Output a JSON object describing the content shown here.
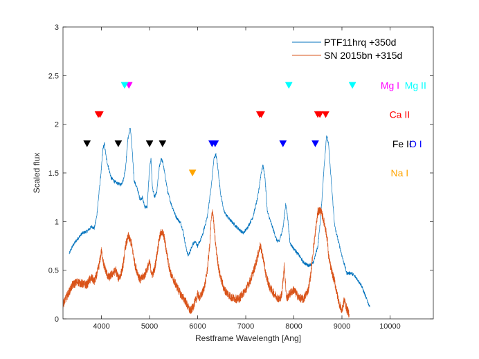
{
  "chart_data": {
    "type": "line",
    "title": "",
    "xlabel": "Restframe Wavelength [Ang]",
    "ylabel": "Scaled flux",
    "xlim": [
      3200,
      10900
    ],
    "ylim": [
      0,
      3
    ],
    "xticks": [
      4000,
      5000,
      6000,
      7000,
      8000,
      9000,
      10000
    ],
    "yticks": [
      0,
      0.5,
      1,
      1.5,
      2,
      2.5,
      3
    ],
    "ytick_labels": [
      "0",
      "0.5",
      "1",
      "1.5",
      "2",
      "2.5",
      "3"
    ],
    "series": [
      {
        "name": "PTF11hrq +350d",
        "color": "#0072BD",
        "x": [
          3330,
          3400,
          3500,
          3600,
          3700,
          3800,
          3850,
          3900,
          3950,
          4000,
          4030,
          4060,
          4100,
          4150,
          4200,
          4300,
          4400,
          4450,
          4500,
          4550,
          4600,
          4640,
          4680,
          4750,
          4800,
          4850,
          4900,
          4950,
          5000,
          5030,
          5060,
          5100,
          5150,
          5200,
          5240,
          5280,
          5330,
          5380,
          5450,
          5550,
          5650,
          5700,
          5750,
          5800,
          5850,
          5900,
          5950,
          6000,
          6050,
          6100,
          6200,
          6280,
          6340,
          6380,
          6420,
          6480,
          6550,
          6650,
          6800,
          6950,
          7050,
          7150,
          7250,
          7320,
          7360,
          7400,
          7450,
          7550,
          7650,
          7700,
          7780,
          7830,
          7870,
          7920,
          8000,
          8100,
          8200,
          8300,
          8400,
          8500,
          8560,
          8620,
          8680,
          8720,
          8780,
          8850,
          9000,
          9100,
          9200,
          9300,
          9400,
          9500,
          9580
        ],
        "y": [
          0.67,
          0.75,
          0.82,
          0.88,
          0.9,
          0.95,
          0.93,
          1.05,
          1.3,
          1.55,
          1.75,
          1.8,
          1.65,
          1.55,
          1.45,
          1.4,
          1.38,
          1.42,
          1.55,
          1.85,
          1.97,
          1.72,
          1.42,
          1.33,
          1.23,
          1.25,
          1.15,
          1.15,
          1.55,
          1.65,
          1.35,
          1.25,
          1.3,
          1.55,
          1.65,
          1.6,
          1.45,
          1.3,
          1.18,
          1.05,
          0.98,
          0.9,
          0.75,
          0.65,
          0.7,
          0.77,
          0.8,
          0.75,
          0.8,
          0.86,
          1.05,
          1.35,
          1.65,
          1.69,
          1.55,
          1.28,
          1.1,
          1.03,
          0.95,
          0.88,
          0.95,
          1.05,
          1.25,
          1.5,
          1.58,
          1.45,
          1.1,
          0.95,
          0.8,
          0.8,
          0.95,
          1.18,
          1.05,
          0.78,
          0.72,
          0.66,
          0.58,
          0.55,
          0.57,
          0.75,
          1.05,
          1.5,
          1.89,
          1.8,
          1.4,
          0.95,
          0.65,
          0.47,
          0.47,
          0.42,
          0.35,
          0.22,
          0.12
        ]
      },
      {
        "name": "SN 2015bn +315d",
        "color": "#D95319",
        "x": [
          3200,
          3300,
          3400,
          3500,
          3600,
          3700,
          3750,
          3800,
          3850,
          3900,
          3950,
          4000,
          4050,
          4100,
          4150,
          4200,
          4300,
          4350,
          4400,
          4450,
          4500,
          4560,
          4620,
          4700,
          4800,
          4900,
          5000,
          5050,
          5100,
          5150,
          5200,
          5250,
          5300,
          5350,
          5400,
          5450,
          5500,
          5550,
          5650,
          5750,
          5800,
          5850,
          5900,
          5950,
          6000,
          6050,
          6100,
          6150,
          6200,
          6250,
          6280,
          6310,
          6340,
          6370,
          6400,
          6450,
          6550,
          6700,
          6850,
          7000,
          7100,
          7200,
          7300,
          7330,
          7370,
          7420,
          7500,
          7600,
          7700,
          7750,
          7800,
          7850,
          7900,
          8000,
          8100,
          8200,
          8300,
          8350,
          8400,
          8450,
          8500,
          8550,
          8600,
          8650,
          8700,
          8720,
          8780,
          8850,
          8900,
          8950,
          9000,
          9050,
          9100,
          9150
        ],
        "y": [
          0.15,
          0.25,
          0.35,
          0.38,
          0.36,
          0.35,
          0.4,
          0.42,
          0.38,
          0.45,
          0.55,
          0.7,
          0.55,
          0.48,
          0.42,
          0.45,
          0.5,
          0.42,
          0.45,
          0.55,
          0.75,
          0.85,
          0.78,
          0.55,
          0.4,
          0.45,
          0.58,
          0.45,
          0.5,
          0.65,
          0.82,
          0.9,
          0.85,
          0.7,
          0.55,
          0.45,
          0.4,
          0.35,
          0.25,
          0.18,
          0.12,
          0.08,
          0.12,
          0.18,
          0.25,
          0.22,
          0.27,
          0.35,
          0.5,
          0.75,
          1.0,
          1.12,
          0.95,
          0.78,
          0.65,
          0.48,
          0.3,
          0.22,
          0.2,
          0.3,
          0.4,
          0.55,
          0.75,
          0.7,
          0.6,
          0.45,
          0.32,
          0.25,
          0.2,
          0.25,
          0.55,
          0.2,
          0.25,
          0.3,
          0.22,
          0.2,
          0.3,
          0.45,
          0.7,
          0.9,
          1.1,
          1.12,
          1.05,
          0.95,
          0.8,
          0.65,
          0.5,
          0.38,
          0.25,
          0.15,
          0.08,
          0.2,
          0.1,
          0.05
        ]
      }
    ],
    "legend": {
      "placement": "top-right",
      "entries": [
        "PTF11hrq +350d",
        "SN 2015bn +315d"
      ]
    },
    "line_markers": [
      {
        "ion": "Mg I",
        "color": "#FF00FF",
        "y": 2.4,
        "x": [
          4571
        ]
      },
      {
        "ion": "Mg II",
        "color": "#00FFFF",
        "y": 2.4,
        "x": [
          4481,
          7896,
          9218
        ]
      },
      {
        "ion": "Ca II",
        "color": "#FF0000",
        "y": 2.1,
        "x": [
          3934,
          3969,
          7291,
          7324,
          8498,
          8542,
          8662
        ]
      },
      {
        "ion": "Fe II",
        "color": "#000000",
        "y": 1.8,
        "x": [
          3700,
          4350,
          5000,
          5270
        ]
      },
      {
        "ion": "O I",
        "color": "#0000FF",
        "y": 1.8,
        "x": [
          6300,
          6364,
          7774,
          8446
        ]
      },
      {
        "ion": "Na I",
        "color": "#FFA500",
        "y": 1.5,
        "x": [
          5893
        ]
      }
    ],
    "ion_labels": [
      {
        "text": "Mg I",
        "color": "#FF00FF",
        "x": 10000,
        "y": 2.4
      },
      {
        "text": "Mg II",
        "color": "#00FFFF",
        "x": 10530,
        "y": 2.4
      },
      {
        "text": "Ca II",
        "color": "#FF0000",
        "x": 10200,
        "y": 2.1
      },
      {
        "text": "Fe II",
        "color": "#000000",
        "x": 10250,
        "y": 1.8
      },
      {
        "text": "O I",
        "color": "#0000FF",
        "x": 10530,
        "y": 1.8
      },
      {
        "text": "Na I",
        "color": "#FFA500",
        "x": 10200,
        "y": 1.5
      }
    ]
  }
}
